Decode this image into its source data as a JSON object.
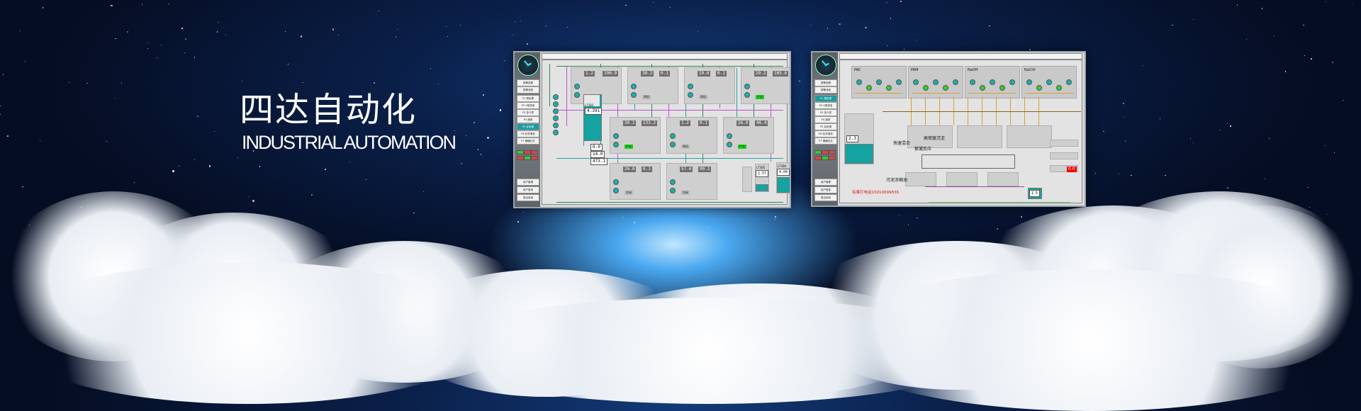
{
  "banner": {
    "title_zh": "四达自动化",
    "title_en": "INDUSTRIAL AUTOMATION"
  },
  "colors": {
    "sky": "#0a1f48",
    "cloud": "#ffffff",
    "accent_teal": "#14a3a0",
    "alarm_red": "#e00000",
    "run_green": "#19d019"
  },
  "sidebar_buttons": [
    "报警查看",
    "报警消音",
    "P1 预处理",
    "P2 V型滤池",
    "P3 多介质",
    "P4 超滤",
    "P5 反渗透",
    "P6 化学清洗",
    "P7 隔膜石灰"
  ],
  "sidebar_bottom": [
    "用户管理",
    "用户登录",
    "退出系统"
  ],
  "panel1": {
    "active_button": 6,
    "units": [
      {
        "ct": "1.2",
        "ft": "190.9",
        "state": "停机"
      },
      {
        "ct": "38.2",
        "ft": "0.1",
        "state": "停机"
      },
      {
        "ct": "29.6",
        "ft": "0.1",
        "state": "停机"
      },
      {
        "ct": "29.2",
        "ft": "105.6",
        "state": "产水"
      },
      {
        "ct": "30.1",
        "ft": "133.2",
        "state": "产水"
      },
      {
        "ct": "1.2",
        "ft": "0.1",
        "state": "停机"
      },
      {
        "ct": "26.0",
        "ft": "46.4",
        "state": "产水"
      },
      {
        "ct": "26.0",
        "ft": "0.1",
        "state": "空闲"
      },
      {
        "ct": "57.6",
        "ft": "90.1",
        "state": "空闲"
      }
    ],
    "tank": {
      "tag": "LT303",
      "value": "4.391"
    },
    "readouts": [
      "0.0",
      "14.0",
      "473.1"
    ],
    "tank2": {
      "tag": "LT305",
      "value": "2.57"
    },
    "tank3": {
      "tag": "LT304",
      "value": "4.04"
    }
  },
  "panel2": {
    "active_button": 2,
    "dosing_groups": [
      "PAC",
      "PAM",
      "NaOH",
      "NaClO"
    ],
    "labels": {
      "mix": "快速混合",
      "hd": "高密度沉淀",
      "floc": "絮凝反应",
      "sludge": "污泥浓缩池"
    },
    "level": "2.3",
    "red_readout": "0.0",
    "level2": "1.5",
    "phone_note": "有事打电话15010699836"
  }
}
